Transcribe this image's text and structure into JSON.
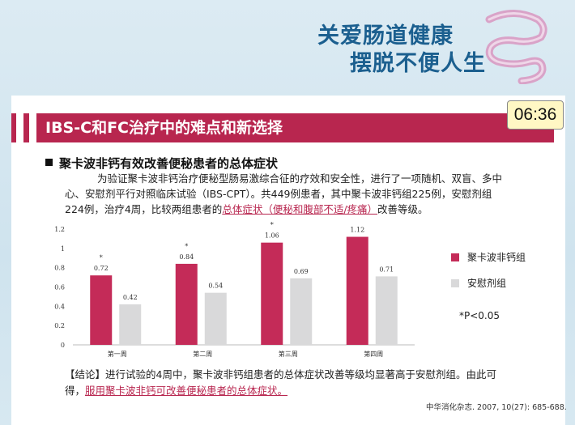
{
  "banner": {
    "line1": "关爱肠道健康",
    "line2": "摆脱不便人生"
  },
  "slide": {
    "title": "IBS-C和FC治疗中的难点和新选择",
    "timer": "06:36",
    "subheading": "聚卡波非钙有效改善便秘患者的总体症状",
    "intro_line1": "为验证聚卡波非钙治疗便秘型肠易激综合征的疗效和安全性，进行了一项随机、双盲、多中",
    "intro_line2": "心、安慰剂平行对照临床试验（IBS-CPT）。共449例患者，其中聚卡波非钙组225例，安慰剂组",
    "intro_line3_a": "224例，治疗4周，比较两组患者的",
    "intro_line3_link": "总体症状（便秘和腹部不适/疼痛）",
    "intro_line3_b": "改善等级。",
    "conclusion_line1": "【结论】进行试验的4周中，聚卡波非钙组患者的总体症状改善等级均显著高于安慰剂组。由此可",
    "conclusion_line2_a": "得，",
    "conclusion_line2_link": "服用聚卡波非钙可改善便秘患者的总体症状。",
    "reference": "中华消化杂志. 2007, 10(27): 685-688."
  },
  "chart_data": {
    "type": "bar",
    "categories": [
      "第一周",
      "第二周",
      "第三周",
      "第四周"
    ],
    "series": [
      {
        "name": "聚卡波非钙组",
        "color": "#c42b58",
        "values": [
          0.72,
          0.84,
          1.06,
          1.12
        ],
        "labels": [
          "0.72",
          "0.84",
          "1.06",
          "1.12"
        ],
        "significance": [
          "*",
          "*",
          "*",
          "*"
        ]
      },
      {
        "name": "安慰剂组",
        "color": "#d9d9da",
        "values": [
          0.42,
          0.54,
          0.69,
          0.71
        ],
        "labels": [
          "0.42",
          "0.54",
          "0.69",
          "0.71"
        ]
      }
    ],
    "yticks": [
      "0",
      "0.2",
      "0.4",
      "0.6",
      "0.8",
      "1",
      "1.2"
    ],
    "ylim": [
      0,
      1.2
    ],
    "footnote": "*P<0.05",
    "legend_position": "right"
  }
}
